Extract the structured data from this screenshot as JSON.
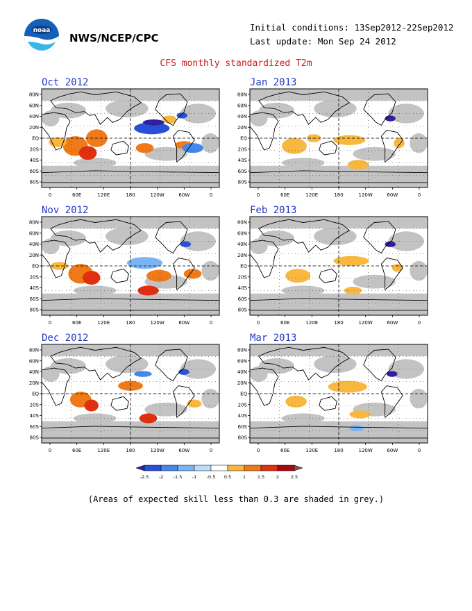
{
  "header": {
    "agency": "NWS/NCEP/CPC",
    "initial_conditions": "Initial conditions: 13Sep2012-22Sep2012",
    "last_update": "Last update: Mon Sep 24 2012",
    "title": "CFS monthly standardized T2m",
    "logo_icon": "noaa-logo-icon"
  },
  "panels": [
    {
      "label": "Oct 2012"
    },
    {
      "label": "Jan 2013"
    },
    {
      "label": "Nov 2012"
    },
    {
      "label": "Feb 2013"
    },
    {
      "label": "Dec 2012"
    },
    {
      "label": "Mar 2013"
    }
  ],
  "lat_labels": [
    "80N",
    "60N",
    "40N",
    "20N",
    "EQ",
    "20S",
    "40S",
    "60S",
    "80S"
  ],
  "lon_labels": [
    "0",
    "60E",
    "120E",
    "180",
    "120W",
    "60W",
    "0"
  ],
  "colorbar": {
    "labels": [
      "-2.5",
      "-2",
      "-1.5",
      "-1",
      "-0.5",
      "0.5",
      "1",
      "1.5",
      "2",
      "2.5"
    ],
    "colors": [
      "#3020a0",
      "#2850d8",
      "#4488ee",
      "#7ab4f5",
      "#bcdcfb",
      "#ffffff",
      "#f8b840",
      "#f07a18",
      "#e03010",
      "#a80810",
      "#8a5048"
    ]
  },
  "footnote": "(Areas of expected skill less than 0.3 are shaded in grey.)",
  "colors": {
    "skill_grey": "#c3c3c3",
    "title_red": "#d01818",
    "panel_title_blue": "#2238c8"
  }
}
